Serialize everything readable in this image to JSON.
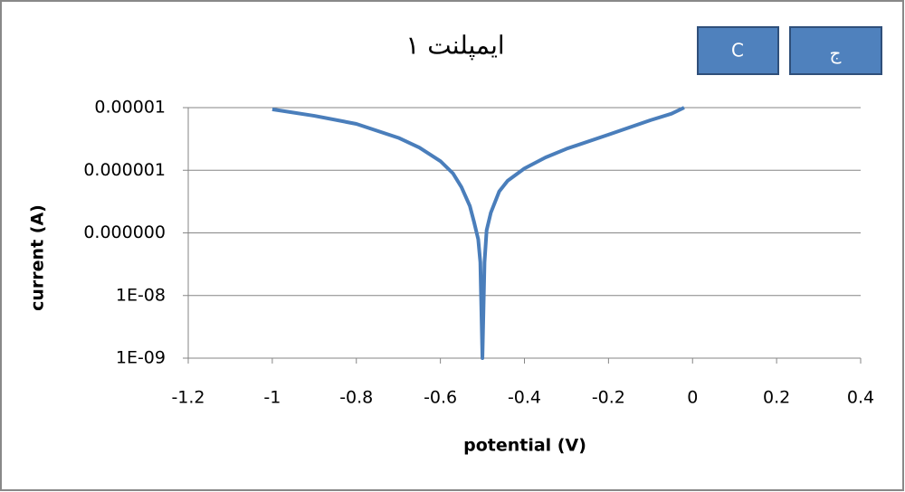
{
  "chart_data": {
    "type": "line",
    "title": "ایمپلنت ۱",
    "x_label": "potential (V)",
    "y_label": "current (A)",
    "annotations": [
      "C",
      "ج"
    ],
    "x": [
      -1,
      -0.9,
      -0.8,
      -0.7,
      -0.65,
      -0.6,
      -0.57,
      -0.55,
      -0.53,
      -0.52,
      -0.51,
      -0.505,
      -0.5,
      -0.495,
      -0.49,
      -0.48,
      -0.46,
      -0.44,
      -0.4,
      -0.35,
      -0.3,
      -0.2,
      -0.1,
      -0.05,
      -0.02
    ],
    "series": [
      {
        "name": "current",
        "color": "#4a7ebb",
        "values": [
          9.4e-06,
          7.4e-06,
          5.5e-06,
          3.3e-06,
          2.3e-06,
          1.4e-06,
          8.9e-07,
          5.4e-07,
          2.7e-07,
          1.5e-07,
          7.9e-08,
          3.4e-08,
          1e-09,
          3.4e-08,
          1.1e-07,
          2.1e-07,
          4.6e-07,
          6.8e-07,
          1.07e-06,
          1.6e-06,
          2.2e-06,
          3.7e-06,
          6.3e-06,
          8e-06,
          1e-05
        ]
      }
    ],
    "xlim": [
      -1.2,
      0.4
    ],
    "xticks": [
      -1.2,
      -1,
      -0.8,
      -0.6,
      -0.4,
      -0.2,
      0,
      0.2,
      0.4
    ],
    "ylim": [
      1e-09,
      1e-05
    ],
    "yticks": [
      {
        "value": 1e-09,
        "label": "1E-09"
      },
      {
        "value": 1e-08,
        "label": "1E-08"
      },
      {
        "value": 1e-07,
        "label": "0.000000"
      },
      {
        "value": 1e-06,
        "label": "0.000001"
      },
      {
        "value": 1e-05,
        "label": "0.00001"
      }
    ],
    "log_scale": true,
    "grid": true
  }
}
